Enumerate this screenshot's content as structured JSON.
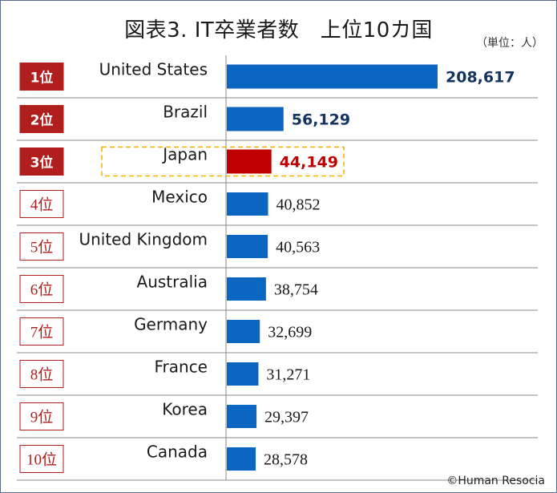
{
  "title": "図表3. IT卒業者数　上位10カ国",
  "unit": "（単位：人）",
  "credit": "©Human Resocia",
  "colors": {
    "bar": "#0b66c2",
    "highlight": "#c00000",
    "rank_fill": "#b01e1e",
    "top_value": "#14335e",
    "dash": "#f0b400"
  },
  "chart_data": {
    "type": "bar",
    "orientation": "horizontal",
    "title": "図表3. IT卒業者数　上位10カ国",
    "unit": "（単位：人）",
    "ranks": [
      "1位",
      "2位",
      "3位",
      "4位",
      "5位",
      "6位",
      "7位",
      "8位",
      "9位",
      "10位"
    ],
    "categories": [
      "United States",
      "Brazil",
      "Japan",
      "Mexico",
      "United Kingdom",
      "Australia",
      "Germany",
      "France",
      "Korea",
      "Canada"
    ],
    "values": [
      208617,
      56129,
      44149,
      40852,
      40563,
      38754,
      32699,
      31271,
      29397,
      28578
    ],
    "value_labels": [
      "208,617",
      "56,129",
      "44,149",
      "40,852",
      "40,563",
      "38,754",
      "32,699",
      "31,271",
      "29,397",
      "28,578"
    ],
    "highlighted": "Japan",
    "grid": false
  }
}
